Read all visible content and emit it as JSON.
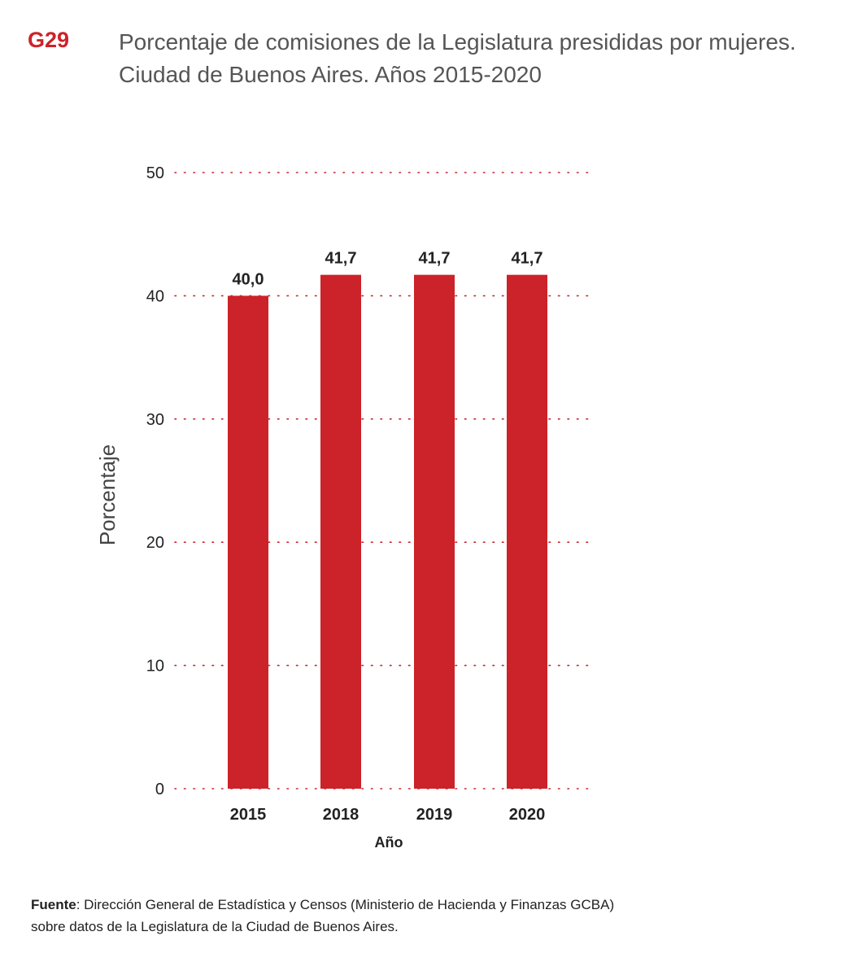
{
  "header": {
    "code": "G29",
    "title_line1": "Porcentaje de comisiones de la Legislatura presididas por mujeres.",
    "title_line2": "Ciudad de Buenos Aires. Años 2015-2020"
  },
  "chart_data": {
    "type": "bar",
    "categories": [
      "2015",
      "2018",
      "2019",
      "2020"
    ],
    "values": [
      40.0,
      41.7,
      41.7,
      41.7
    ],
    "value_labels": [
      "40,0",
      "41,7",
      "41,7",
      "41,7"
    ],
    "xlabel": "Año",
    "ylabel": "Porcentaje",
    "ylim": [
      0,
      50
    ],
    "yticks": [
      0,
      10,
      20,
      30,
      40,
      50
    ],
    "grid": "dotted",
    "bar_color": "#cc2229",
    "grid_color": "#cc2229"
  },
  "footer": {
    "source_label": "Fuente",
    "source_line1": ": Dirección General de Estadística y Censos (Ministerio de Hacienda y Finanzas GCBA)",
    "source_line2": "sobre datos de la Legislatura de la Ciudad de Buenos Aires."
  }
}
